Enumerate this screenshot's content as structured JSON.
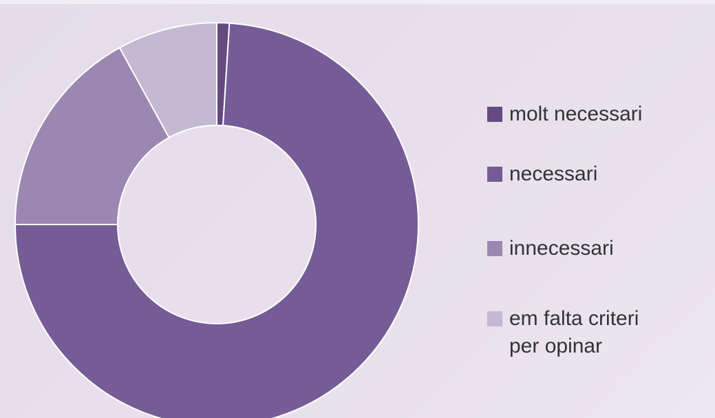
{
  "chart_data": {
    "type": "donut",
    "categories": [
      "molt necessari",
      "necessari",
      "innecessari",
      "em falta criteri per opinar"
    ],
    "values": [
      1,
      74,
      17,
      8
    ],
    "colors": [
      "#634b80",
      "#765c96",
      "#9b87b0",
      "#c3b9d2"
    ]
  }
}
